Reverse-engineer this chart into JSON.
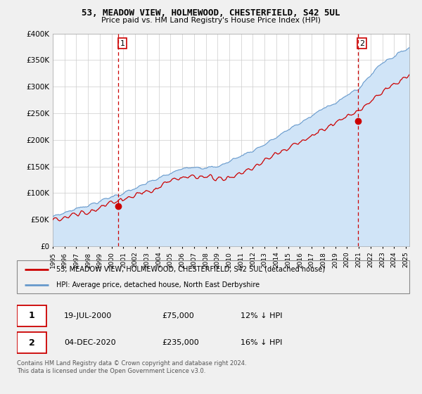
{
  "title": "53, MEADOW VIEW, HOLMEWOOD, CHESTERFIELD, S42 5UL",
  "subtitle": "Price paid vs. HM Land Registry's House Price Index (HPI)",
  "ylim": [
    0,
    400000
  ],
  "yticks": [
    0,
    50000,
    100000,
    150000,
    200000,
    250000,
    300000,
    350000,
    400000
  ],
  "background_color": "#f0f0f0",
  "plot_bg_color": "#ffffff",
  "hpi_color": "#6699cc",
  "hpi_fill_color": "#d0e4f7",
  "price_color": "#cc0000",
  "vline_color": "#cc0000",
  "legend_label_price": "53, MEADOW VIEW, HOLMEWOOD, CHESTERFIELD, S42 5UL (detached house)",
  "legend_label_hpi": "HPI: Average price, detached house, North East Derbyshire",
  "sale1_date": "19-JUL-2000",
  "sale1_price": "£75,000",
  "sale1_hpi": "12% ↓ HPI",
  "sale2_date": "04-DEC-2020",
  "sale2_price": "£235,000",
  "sale2_hpi": "16% ↓ HPI",
  "footer": "Contains HM Land Registry data © Crown copyright and database right 2024.\nThis data is licensed under the Open Government Licence v3.0.",
  "sale1_x": 2000.55,
  "sale1_y": 75000,
  "sale2_x": 2020.92,
  "sale2_y": 235000,
  "xmin": 1995,
  "xmax": 2025.3
}
